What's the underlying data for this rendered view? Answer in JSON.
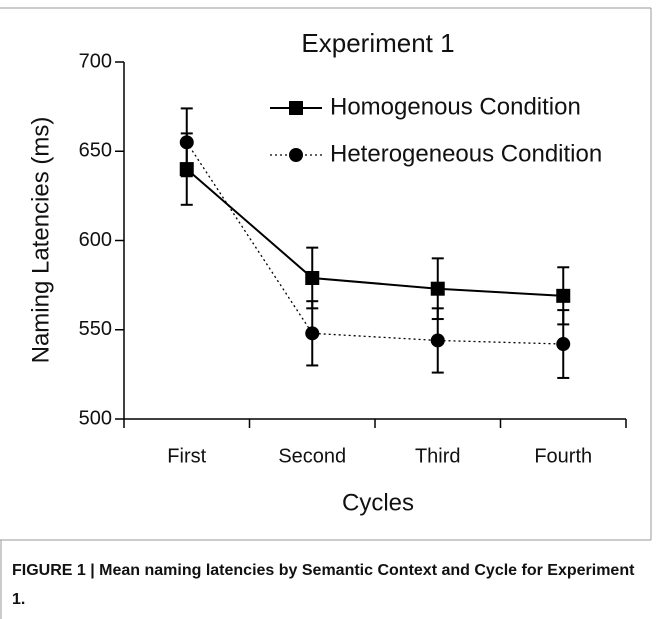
{
  "chart_data": {
    "type": "line",
    "title": "Experiment 1",
    "xlabel": "Cycles",
    "ylabel": "Naming Latencies (ms)",
    "categories": [
      "First",
      "Second",
      "Third",
      "Fourth"
    ],
    "series": [
      {
        "name": "Homogenous Condition",
        "color": "#000000",
        "marker": "square",
        "dash": "solid",
        "values": [
          640,
          579,
          573,
          569
        ],
        "errors": [
          20,
          17,
          17,
          16
        ]
      },
      {
        "name": "Heterogeneous Condition",
        "color": "#000000",
        "marker": "circle",
        "dash": "dotted",
        "values": [
          655,
          548,
          544,
          542
        ],
        "errors": [
          19,
          18,
          18,
          19
        ]
      }
    ],
    "ylim": [
      500,
      700
    ],
    "yticks": [
      500,
      550,
      600,
      650,
      700
    ],
    "legend": "upper right",
    "grid": false
  },
  "caption": "FIGURE 1 | Mean naming latencies by Semantic Context and Cycle for Experiment 1."
}
